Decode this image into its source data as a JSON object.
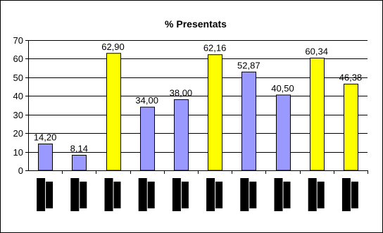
{
  "colors": {
    "background": "#ffffff",
    "border": "#000000",
    "gridline": "#000000",
    "bar_purple": "#9999ff",
    "bar_yellow": "#ffff00",
    "redacted_label": "#000000"
  },
  "chart_data": {
    "type": "bar",
    "title": "% Presentats",
    "xlabel": "",
    "ylabel": "",
    "ylim": [
      0,
      70
    ],
    "yticks": [
      "0",
      "10",
      "20",
      "30",
      "40",
      "50",
      "60",
      "70"
    ],
    "grid": true,
    "legend": "none",
    "categories_redacted": true,
    "values": [
      14.2,
      8.14,
      62.9,
      34.0,
      38.0,
      62.16,
      52.87,
      40.5,
      60.34,
      46.38
    ],
    "data_labels": [
      "14,20",
      "8,14",
      "62,90",
      "34,00",
      "38,00",
      "62,16",
      "52,87",
      "40,50",
      "60,34",
      "46,38"
    ],
    "bar_colors": [
      "#9999ff",
      "#9999ff",
      "#ffff00",
      "#9999ff",
      "#9999ff",
      "#ffff00",
      "#9999ff",
      "#9999ff",
      "#ffff00",
      "#ffff00"
    ]
  }
}
